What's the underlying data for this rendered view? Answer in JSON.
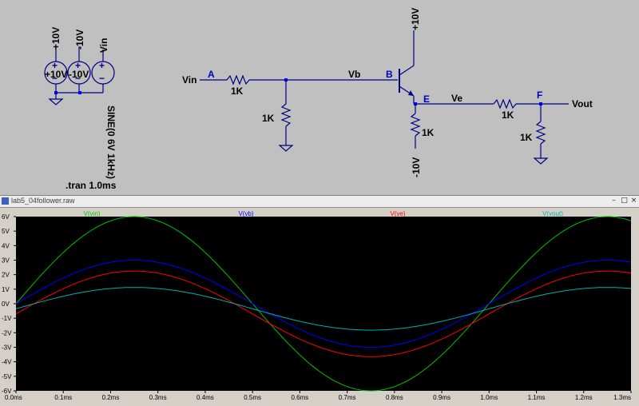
{
  "schematic": {
    "sources": [
      {
        "id": "v1",
        "label": "+10V",
        "value": "+10V"
      },
      {
        "id": "v2",
        "label": "-10V",
        "value": "-10V"
      },
      {
        "id": "v3",
        "label": "Vin"
      }
    ],
    "sine_spec": "SINE(0 6V 1kHz)",
    "tran_directive": ".tran 1.0ms",
    "nets": {
      "vin": "Vin",
      "a": "A",
      "vb": "Vb",
      "b": "B",
      "e": "E",
      "ve": "Ve",
      "f": "F",
      "vout": "Vout",
      "vcc": "+10V",
      "vee": "-10V"
    },
    "resistors": {
      "r1": "1K",
      "r2": "1K",
      "r3": "1K",
      "r4": "1K",
      "r5": "1K"
    }
  },
  "waveform": {
    "title": "lab5_04follower.raw",
    "min_icon": "–",
    "max_icon": "□",
    "close_icon": "×"
  },
  "chart_data": {
    "type": "line",
    "title": "",
    "xlabel": "",
    "ylabel": "",
    "x_unit": "ms",
    "xlim": [
      0,
      1.3
    ],
    "ylim": [
      -6,
      6
    ],
    "x_ticks": [
      "0.0ms",
      "0.1ms",
      "0.2ms",
      "0.3ms",
      "0.4ms",
      "0.5ms",
      "0.6ms",
      "0.7ms",
      "0.8ms",
      "0.9ms",
      "1.0ms",
      "1.1ms",
      "1.2ms",
      "1.3ms"
    ],
    "y_ticks": [
      "6V",
      "5V",
      "4V",
      "3V",
      "2V",
      "1V",
      "0V",
      "-1V",
      "-2V",
      "-3V",
      "-4V",
      "-5V",
      "-6V"
    ],
    "grid": false,
    "background": "#000000",
    "frequency_khz": 1,
    "series": [
      {
        "name": "V(vin)",
        "color": "#00c000",
        "amplitude": 6.0,
        "offset": 0.0
      },
      {
        "name": "V(vb)",
        "color": "#0000ff",
        "amplitude": 3.0,
        "offset": 0.0
      },
      {
        "name": "V(ve)",
        "color": "#ff0000",
        "amplitude": 2.95,
        "offset": -0.7
      },
      {
        "name": "V(vout)",
        "color": "#00b0b0",
        "amplitude": 1.47,
        "offset": -0.35
      }
    ]
  }
}
